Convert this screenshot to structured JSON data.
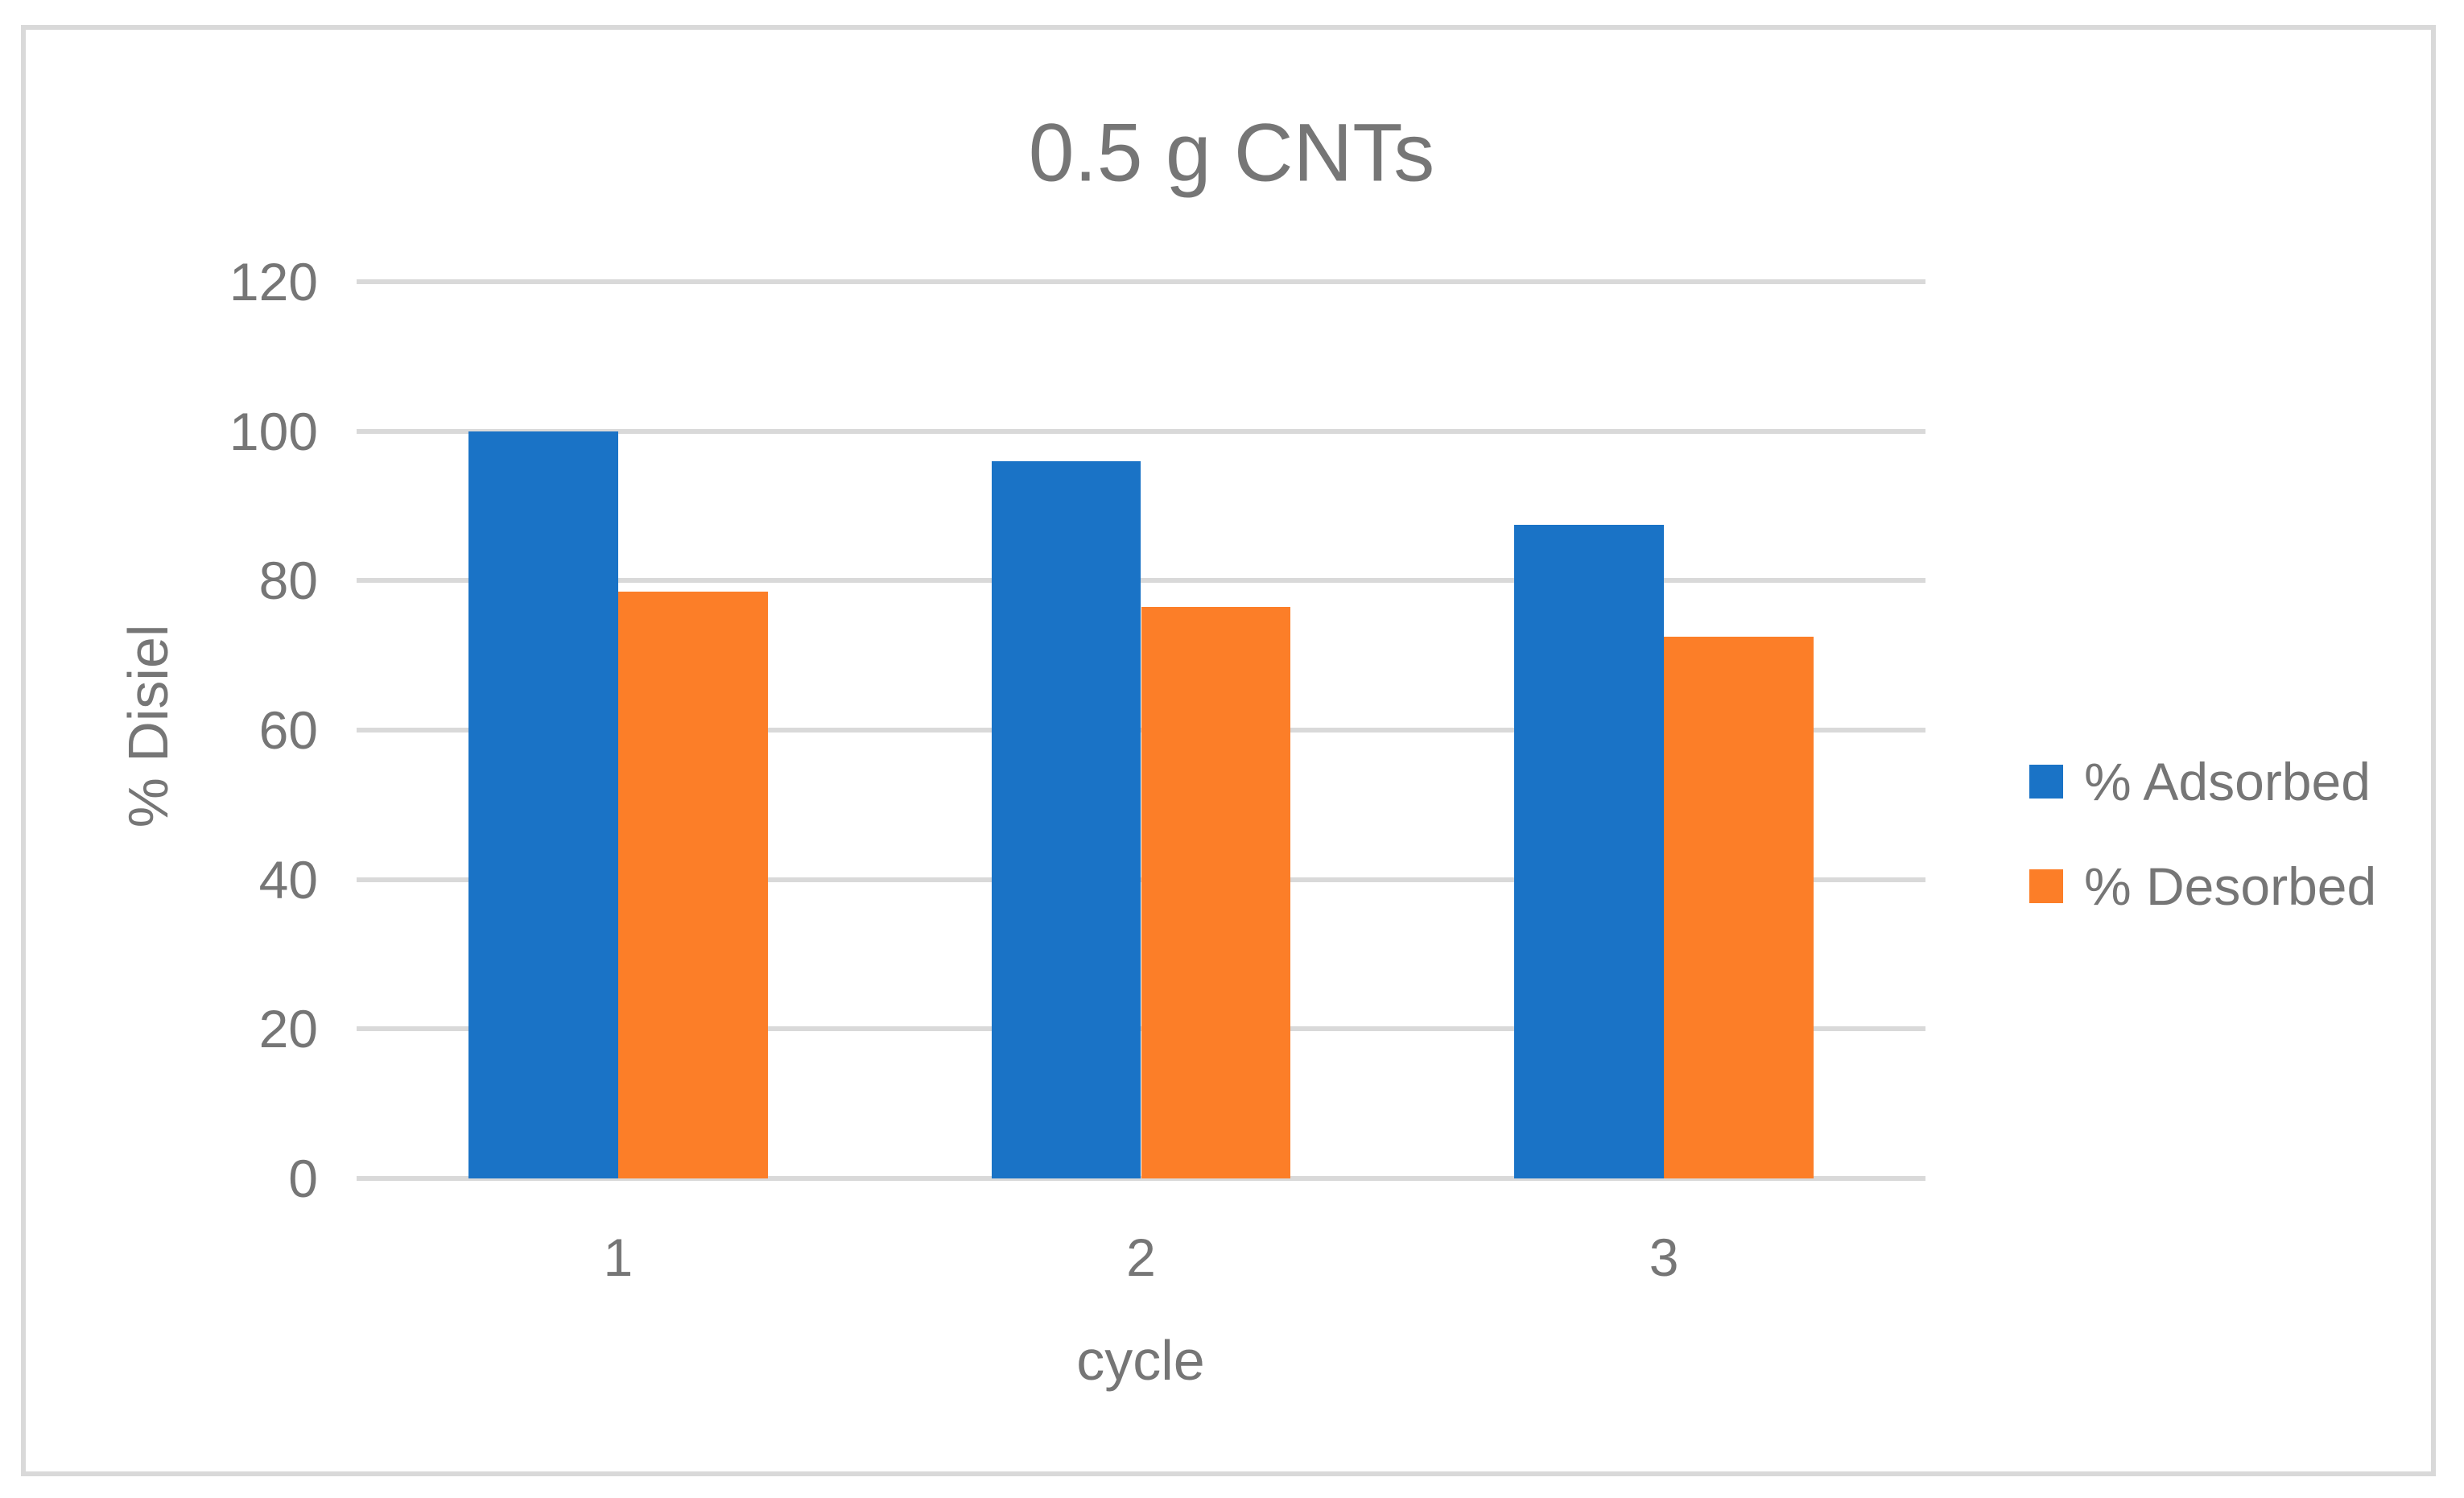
{
  "colors": {
    "adsorbed_blue": "#1A73C6",
    "desorbed_orange": "#FC7E28",
    "text_gray": "#767676",
    "gridline_gray": "#D9D9D9",
    "background": "#FFFFFF"
  },
  "chart_data": {
    "type": "bar",
    "title": "0.5 g CNTs",
    "xlabel": "cycle",
    "ylabel": "% Disiel",
    "categories": [
      "1",
      "2",
      "3"
    ],
    "series": [
      {
        "name": "% Adsorbed",
        "color": "#1A73C6",
        "values": [
          100,
          96,
          87.5
        ]
      },
      {
        "name": "% Desorbed",
        "color": "#FC7E28",
        "values": [
          78.5,
          76.5,
          72.5
        ]
      }
    ],
    "ylim": [
      0,
      120
    ],
    "yticks": [
      0,
      20,
      40,
      60,
      80,
      100,
      120
    ],
    "grid": true,
    "legend_position": "right"
  }
}
